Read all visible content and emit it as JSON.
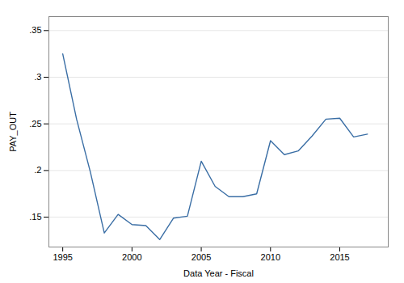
{
  "chart_data": {
    "type": "line",
    "x": [
      1995,
      1996,
      1997,
      1998,
      1999,
      2000,
      2001,
      2002,
      2003,
      2004,
      2005,
      2006,
      2007,
      2008,
      2009,
      2010,
      2011,
      2012,
      2013,
      2014,
      2015,
      2016,
      2017
    ],
    "values": [
      0.325,
      0.255,
      0.198,
      0.133,
      0.153,
      0.142,
      0.141,
      0.126,
      0.149,
      0.151,
      0.21,
      0.183,
      0.172,
      0.172,
      0.175,
      0.232,
      0.217,
      0.221,
      0.237,
      0.255,
      0.256,
      0.236,
      0.239
    ],
    "xlabel": "Data Year - Fiscal",
    "ylabel": "PAY_OUT",
    "xlim": [
      1994.0,
      2018.5
    ],
    "ylim": [
      0.118,
      0.365
    ],
    "xticks": [
      1995,
      2000,
      2005,
      2010,
      2015
    ],
    "yticks": [
      {
        "value": 0.15,
        "label": ".15"
      },
      {
        "value": 0.2,
        "label": ".2"
      },
      {
        "value": 0.25,
        "label": ".25"
      },
      {
        "value": 0.3,
        "label": ".3"
      },
      {
        "value": 0.35,
        "label": ".35"
      }
    ],
    "color": "#3a6ea5",
    "grid": true
  }
}
